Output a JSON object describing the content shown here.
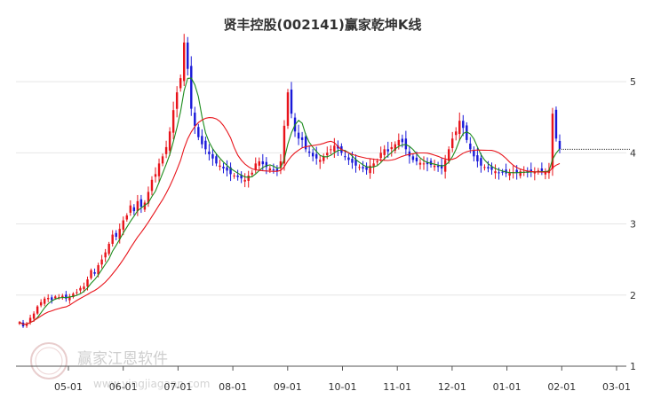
{
  "chart_data": {
    "type": "candlestick",
    "title": "贤丰控股(002141)赢家乾坤K线",
    "x_ticks": [
      "05-01",
      "06-01",
      "07-01",
      "08-01",
      "09-01",
      "10-01",
      "11-01",
      "12-01",
      "01-01",
      "02-01",
      "03-01"
    ],
    "y_ticks": [
      1,
      2,
      3,
      4,
      5
    ],
    "ylim": [
      1,
      5.5
    ],
    "grid": "horizontal",
    "up_color": "#e8141b",
    "down_color": "#1919d9",
    "ma_short_color": "#1c8c1c",
    "ma_long_color": "#e8141b",
    "last_price_line": 4.05,
    "close_series": [
      1.62,
      1.56,
      1.6,
      1.68,
      1.74,
      1.84,
      1.9,
      1.95,
      1.96,
      1.93,
      1.98,
      1.97,
      1.99,
      1.95,
      1.98,
      2.02,
      2.04,
      2.1,
      2.12,
      2.22,
      2.35,
      2.3,
      2.42,
      2.5,
      2.6,
      2.72,
      2.85,
      2.82,
      2.93,
      3.05,
      3.12,
      3.26,
      3.18,
      3.32,
      3.24,
      3.3,
      3.45,
      3.62,
      3.7,
      3.85,
      3.95,
      4.08,
      4.3,
      4.6,
      4.85,
      5.05,
      5.55,
      5.18,
      4.62,
      4.38,
      4.22,
      4.12,
      4.05,
      3.98,
      3.92,
      3.85,
      3.82,
      3.78,
      3.75,
      3.7,
      3.68,
      3.66,
      3.64,
      3.62,
      3.68,
      3.72,
      3.85,
      3.88,
      3.84,
      3.8,
      3.78,
      3.76,
      3.74,
      3.88,
      4.38,
      4.85,
      4.55,
      4.3,
      4.2,
      4.18,
      4.05,
      4.0,
      3.95,
      3.92,
      3.9,
      3.95,
      4.0,
      4.05,
      4.1,
      4.06,
      4.0,
      3.95,
      3.9,
      3.86,
      3.82,
      3.8,
      3.78,
      3.76,
      3.82,
      3.85,
      3.88,
      4.0,
      4.05,
      4.02,
      4.08,
      4.12,
      4.18,
      4.15,
      4.05,
      3.95,
      3.9,
      3.88,
      3.86,
      3.85,
      3.84,
      3.83,
      3.82,
      3.8,
      3.78,
      3.9,
      4.05,
      4.2,
      4.3,
      4.45,
      4.35,
      4.18,
      4.05,
      3.95,
      3.88,
      3.82,
      3.8,
      3.78,
      3.76,
      3.74,
      3.72,
      3.72,
      3.71,
      3.72,
      3.73,
      3.72,
      3.74,
      3.73,
      3.72,
      3.74,
      3.73,
      3.75,
      3.74,
      3.73,
      3.76,
      4.55,
      4.2,
      4.05
    ]
  },
  "watermark": {
    "brand": "赢家江恩软件",
    "url": "www.yingjiagann.com",
    "seal_text": "赢家财富"
  }
}
